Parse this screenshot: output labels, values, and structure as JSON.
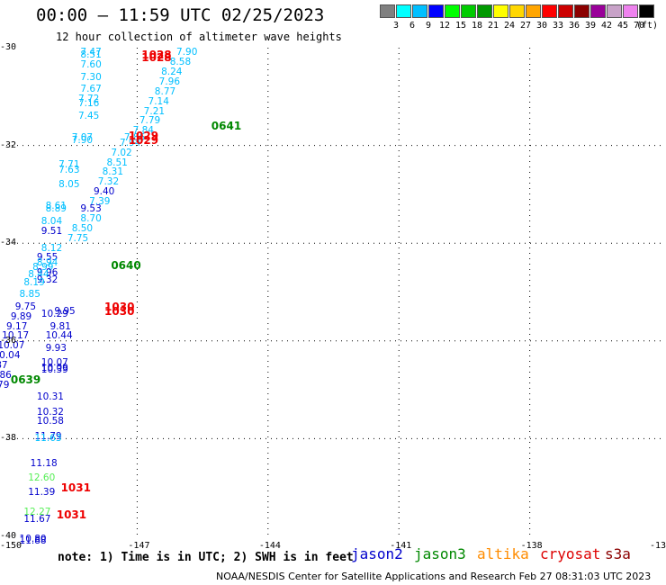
{
  "title": "00:00 – 11:59 UTC 02/25/2023",
  "subtitle": "12 hour collection of altimeter wave heights",
  "colorbar": {
    "colors": [
      "#808080",
      "#00ffff",
      "#00bfff",
      "#0000ff",
      "#00ff00",
      "#00cc00",
      "#009900",
      "#ffff00",
      "#ffd700",
      "#ffa500",
      "#ff0000",
      "#cc0000",
      "#8b0000",
      "#990099",
      "#c8a2c8",
      "#ee82ee",
      "#000000"
    ],
    "labels": [
      "3",
      "6",
      "9",
      "12",
      "15",
      "18",
      "21",
      "24",
      "27",
      "30",
      "33",
      "36",
      "39",
      "42",
      "45",
      "70",
      "(ft)"
    ]
  },
  "axes": {
    "lat_labels": [
      "-30",
      "-32",
      "-34",
      "-36",
      "-38",
      "-40"
    ],
    "lon_labels": [
      "-150",
      "-147",
      "-144",
      "-141",
      "-138",
      "-13"
    ]
  },
  "note": "note: 1) Time is in UTC; 2) SWH is in feet",
  "legend": [
    {
      "name": "jason2",
      "color": "#0000cc"
    },
    {
      "name": "jason3",
      "color": "#008800"
    },
    {
      "name": "altika",
      "color": "#ff8c00"
    },
    {
      "name": "cryosat",
      "color": "#dd0000"
    },
    {
      "name": "s3a",
      "color": "#8b0000"
    }
  ],
  "credit": "NOAA/NESDIS Center for Satellite Applications and Research    Feb 27 08:31:03 UTC 2023",
  "wave_labels": [
    {
      "lon": -148.3,
      "lat": -30.1,
      "text": "7.47",
      "color": "#00bfff"
    },
    {
      "lon": -148.3,
      "lat": -30.15,
      "text": "8.51",
      "color": "#00bfff"
    },
    {
      "lon": -148.3,
      "lat": -30.35,
      "text": "7.60",
      "color": "#00bfff"
    },
    {
      "lon": -148.3,
      "lat": -30.6,
      "text": "7.30",
      "color": "#00bfff"
    },
    {
      "lon": -148.3,
      "lat": -30.85,
      "text": "7.67",
      "color": "#00bfff"
    },
    {
      "lon": -148.35,
      "lat": -31.05,
      "text": "7.72",
      "color": "#00bfff"
    },
    {
      "lon": -148.35,
      "lat": -31.15,
      "text": "7.16",
      "color": "#00bfff"
    },
    {
      "lon": -148.35,
      "lat": -31.4,
      "text": "7.45",
      "color": "#00bfff"
    },
    {
      "lon": -148.5,
      "lat": -31.85,
      "text": "7.07",
      "color": "#00bfff"
    },
    {
      "lon": -148.5,
      "lat": -31.9,
      "text": "7.90",
      "color": "#00bfff"
    },
    {
      "lon": -146.1,
      "lat": -30.1,
      "text": "7.90",
      "color": "#00bfff"
    },
    {
      "lon": -146.25,
      "lat": -30.3,
      "text": "8.58",
      "color": "#00bfff"
    },
    {
      "lon": -146.45,
      "lat": -30.5,
      "text": "8.24",
      "color": "#00bfff"
    },
    {
      "lon": -146.5,
      "lat": -30.7,
      "text": "7.96",
      "color": "#00bfff"
    },
    {
      "lon": -146.6,
      "lat": -30.9,
      "text": "8.77",
      "color": "#00bfff"
    },
    {
      "lon": -146.75,
      "lat": -31.1,
      "text": "7.14",
      "color": "#00bfff"
    },
    {
      "lon": -146.85,
      "lat": -31.3,
      "text": "7.21",
      "color": "#00bfff"
    },
    {
      "lon": -146.95,
      "lat": -31.5,
      "text": "7.79",
      "color": "#00bfff"
    },
    {
      "lon": -147.1,
      "lat": -31.7,
      "text": "7.84",
      "color": "#00bfff"
    },
    {
      "lon": -147.3,
      "lat": -31.85,
      "text": "7.86",
      "color": "#00bfff"
    },
    {
      "lon": -147.4,
      "lat": -31.95,
      "text": "7.94",
      "color": "#00bfff"
    },
    {
      "lon": -147.6,
      "lat": -32.15,
      "text": "7.02",
      "color": "#00bfff"
    },
    {
      "lon": -147.7,
      "lat": -32.35,
      "text": "8.51",
      "color": "#00bfff"
    },
    {
      "lon": -148.8,
      "lat": -32.4,
      "text": "7.71",
      "color": "#00bfff"
    },
    {
      "lon": -148.8,
      "lat": -32.5,
      "text": "7.63",
      "color": "#00bfff"
    },
    {
      "lon": -147.8,
      "lat": -32.55,
      "text": "8.31",
      "color": "#00bfff"
    },
    {
      "lon": -147.9,
      "lat": -32.75,
      "text": "7.32",
      "color": "#00bfff"
    },
    {
      "lon": -148.8,
      "lat": -32.8,
      "text": "8.05",
      "color": "#00bfff"
    },
    {
      "lon": -148.0,
      "lat": -32.95,
      "text": "9.40",
      "color": "#0000cc"
    },
    {
      "lon": -148.1,
      "lat": -33.15,
      "text": "7.39",
      "color": "#00bfff"
    },
    {
      "lon": -149.1,
      "lat": -33.25,
      "text": "8.61",
      "color": "#00bfff"
    },
    {
      "lon": -149.1,
      "lat": -33.3,
      "text": "8.89",
      "color": "#00bfff"
    },
    {
      "lon": -148.3,
      "lat": -33.3,
      "text": "9.53",
      "color": "#0000cc"
    },
    {
      "lon": -148.3,
      "lat": -33.5,
      "text": "8.70",
      "color": "#00bfff"
    },
    {
      "lon": -149.2,
      "lat": -33.55,
      "text": "8.04",
      "color": "#00bfff"
    },
    {
      "lon": -148.5,
      "lat": -33.7,
      "text": "8.50",
      "color": "#00bfff"
    },
    {
      "lon": -149.2,
      "lat": -33.75,
      "text": "9.51",
      "color": "#0000cc"
    },
    {
      "lon": -148.6,
      "lat": -33.9,
      "text": "7.75",
      "color": "#00bfff"
    },
    {
      "lon": -149.2,
      "lat": -34.1,
      "text": "8.12",
      "color": "#00bfff"
    },
    {
      "lon": -149.3,
      "lat": -34.3,
      "text": "9.55",
      "color": "#0000cc"
    },
    {
      "lon": -149.3,
      "lat": -34.4,
      "text": "8.94",
      "color": "#00bfff"
    },
    {
      "lon": -149.4,
      "lat": -34.5,
      "text": "8.99",
      "color": "#00bfff"
    },
    {
      "lon": -149.3,
      "lat": -34.6,
      "text": "9.96",
      "color": "#0000cc"
    },
    {
      "lon": -149.5,
      "lat": -34.65,
      "text": "8.44",
      "color": "#00bfff"
    },
    {
      "lon": -149.3,
      "lat": -34.75,
      "text": "9.32",
      "color": "#0000cc"
    },
    {
      "lon": -149.6,
      "lat": -34.8,
      "text": "8.19",
      "color": "#00bfff"
    },
    {
      "lon": -149.7,
      "lat": -35.05,
      "text": "8.85",
      "color": "#00bfff"
    },
    {
      "lon": -149.8,
      "lat": -35.3,
      "text": "9.75",
      "color": "#0000cc"
    },
    {
      "lon": -148.9,
      "lat": -35.4,
      "text": "9.95",
      "color": "#0000cc"
    },
    {
      "lon": -149.2,
      "lat": -35.45,
      "text": "10.29",
      "color": "#0000cc"
    },
    {
      "lon": -149.9,
      "lat": -35.5,
      "text": "9.89",
      "color": "#0000cc"
    },
    {
      "lon": -150.0,
      "lat": -35.7,
      "text": "9.17",
      "color": "#0000cc"
    },
    {
      "lon": -149.0,
      "lat": -35.7,
      "text": "9.81",
      "color": "#0000cc"
    },
    {
      "lon": -149.1,
      "lat": -35.9,
      "text": "10.44",
      "color": "#0000cc"
    },
    {
      "lon": -150.1,
      "lat": -35.9,
      "text": "10.17",
      "color": "#0000cc"
    },
    {
      "lon": -150.2,
      "lat": -36.1,
      "text": "10.07",
      "color": "#0000cc"
    },
    {
      "lon": -149.1,
      "lat": -36.15,
      "text": "9.93",
      "color": "#0000cc"
    },
    {
      "lon": -150.3,
      "lat": -36.3,
      "text": "10.04",
      "color": "#0000cc"
    },
    {
      "lon": -149.2,
      "lat": -36.45,
      "text": "10.07",
      "color": "#0000cc"
    },
    {
      "lon": -150.45,
      "lat": -36.5,
      "text": "9.87",
      "color": "#0000cc"
    },
    {
      "lon": -149.2,
      "lat": -36.55,
      "text": "10.09",
      "color": "#0000cc"
    },
    {
      "lon": -149.2,
      "lat": -36.6,
      "text": "10.39",
      "color": "#0000cc"
    },
    {
      "lon": -150.5,
      "lat": -36.7,
      "text": "10.86",
      "color": "#0000cc"
    },
    {
      "lon": -150.55,
      "lat": -36.9,
      "text": "10.79",
      "color": "#0000cc"
    },
    {
      "lon": -149.3,
      "lat": -37.15,
      "text": "10.31",
      "color": "#0000cc"
    },
    {
      "lon": -149.3,
      "lat": -37.45,
      "text": "10.32",
      "color": "#0000cc"
    },
    {
      "lon": -149.3,
      "lat": -37.65,
      "text": "10.58",
      "color": "#0000cc"
    },
    {
      "lon": -149.35,
      "lat": -37.95,
      "text": "11.79",
      "color": "#0000cc"
    },
    {
      "lon": -149.35,
      "lat": -38.0,
      "text": "11.63",
      "color": "#00bfff"
    },
    {
      "lon": -149.45,
      "lat": -38.5,
      "text": "11.18",
      "color": "#0000cc"
    },
    {
      "lon": -149.5,
      "lat": -38.8,
      "text": "12.60",
      "color": "#55ee55"
    },
    {
      "lon": -149.5,
      "lat": -39.1,
      "text": "11.39",
      "color": "#0000cc"
    },
    {
      "lon": -149.6,
      "lat": -39.5,
      "text": "12.27",
      "color": "#55ee55"
    },
    {
      "lon": -149.6,
      "lat": -39.65,
      "text": "11.67",
      "color": "#0000cc"
    },
    {
      "lon": -149.7,
      "lat": -40.05,
      "text": "10.80",
      "color": "#0000cc"
    },
    {
      "lon": -149.7,
      "lat": -40.1,
      "text": "11.88",
      "color": "#0000cc"
    }
  ],
  "time_labels": [
    {
      "lon": -146.9,
      "lat": -30.15,
      "text": "1028",
      "color": "#ee0000"
    },
    {
      "lon": -146.9,
      "lat": -30.2,
      "text": "1028",
      "color": "#ee0000"
    },
    {
      "lon": -145.3,
      "lat": -31.6,
      "text": "0641",
      "color": "#008800"
    },
    {
      "lon": -147.2,
      "lat": -31.8,
      "text": "1029",
      "color": "#ee0000"
    },
    {
      "lon": -147.2,
      "lat": -31.9,
      "text": "1029",
      "color": "#ee0000"
    },
    {
      "lon": -147.6,
      "lat": -34.45,
      "text": "0640",
      "color": "#008800"
    },
    {
      "lon": -147.75,
      "lat": -35.3,
      "text": "1030",
      "color": "#ee0000"
    },
    {
      "lon": -147.75,
      "lat": -35.4,
      "text": "1030",
      "color": "#ee0000"
    },
    {
      "lon": -149.9,
      "lat": -36.8,
      "text": "0639",
      "color": "#008800"
    },
    {
      "lon": -148.75,
      "lat": -39.0,
      "text": "1031",
      "color": "#ee0000"
    },
    {
      "lon": -148.85,
      "lat": -39.55,
      "text": "1031",
      "color": "#ee0000"
    }
  ]
}
